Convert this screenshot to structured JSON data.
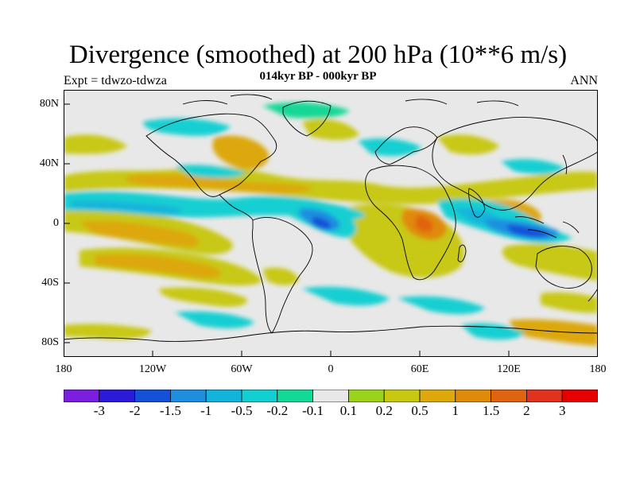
{
  "title": "Divergence (smoothed) at 200 hPa (10**6 m/s)",
  "subtitle": "014kyr BP - 000kyr BP",
  "experiment_label": "Expt = tdwzo-tdwza",
  "period_label": "ANN",
  "lat_labels": [
    "80N",
    "40N",
    "0",
    "40S",
    "80S"
  ],
  "lon_labels": [
    "180",
    "120W",
    "60W",
    "0",
    "60E",
    "120E",
    "180"
  ],
  "colorbar": {
    "labels": [
      "-3",
      "-2",
      "-1.5",
      "-1",
      "-0.5",
      "-0.2",
      "-0.1",
      "0.1",
      "0.2",
      "0.5",
      "1",
      "1.5",
      "2",
      "3"
    ],
    "colors": [
      "#7a1fe0",
      "#2b1ad8",
      "#1550d8",
      "#1e8fe0",
      "#12b4dc",
      "#12cfd2",
      "#14d896",
      "#e8e8e8",
      "#9ad21c",
      "#c8c812",
      "#dca80a",
      "#e08a0a",
      "#e06410",
      "#e0321e",
      "#e60000"
    ]
  },
  "map_features": {
    "neutral_color": "#e8e8e8",
    "coastline_color": "#000000"
  }
}
